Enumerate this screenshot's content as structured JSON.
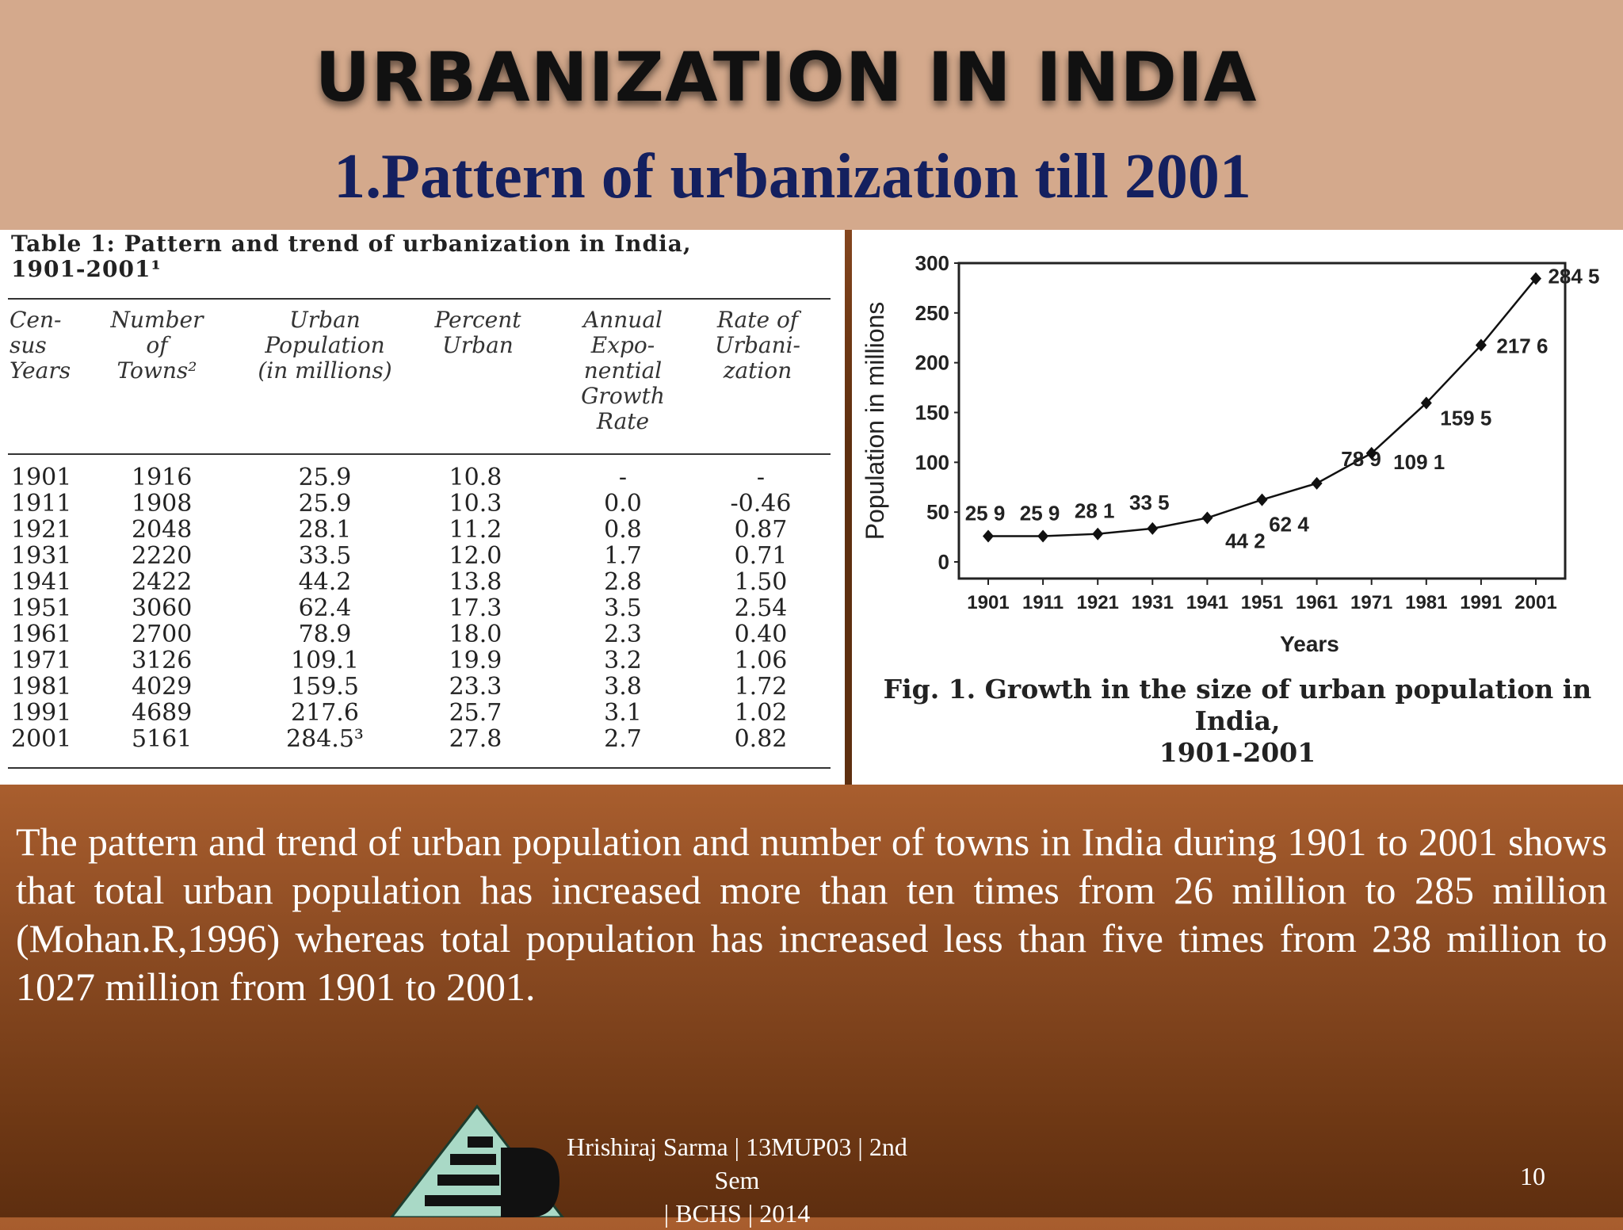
{
  "slide": {
    "title": "URBANIZATION IN INDIA",
    "subtitle": "1.Pattern of urbanization till 2001",
    "body_text": "The pattern and trend of urban population and number of towns in India during 1901 to 2001 shows that total urban population has increased more than ten times from 26 million to 285 million (Mohan.R,1996) whereas total population has increased less than five times from 238 million to 1027 million from 1901 to 2001.",
    "footer": {
      "author_line1": "Hrishiraj Sarma | 13MUP03 | 2nd Sem",
      "author_line2": "| BCHS | 2014",
      "page_number": "10"
    }
  },
  "table": {
    "caption_line1": "Table 1: Pattern and trend of urbanization in India,",
    "caption_line2": "1901-2001¹",
    "headers": [
      [
        "Cen-",
        "sus",
        "Years"
      ],
      [
        "Number",
        "of",
        "Towns²"
      ],
      [
        "Urban",
        "Population",
        "(in millions)"
      ],
      [
        "Percent",
        "Urban"
      ],
      [
        "Annual",
        "Expo-",
        "nential",
        "Growth",
        "Rate"
      ],
      [
        "Rate of",
        "Urbani-",
        "zation"
      ]
    ],
    "rows": [
      [
        "1901",
        "1916",
        "25.9",
        "10.8",
        "-",
        "-"
      ],
      [
        "1911",
        "1908",
        "25.9",
        "10.3",
        "0.0",
        "-0.46"
      ],
      [
        "1921",
        "2048",
        "28.1",
        "11.2",
        "0.8",
        "0.87"
      ],
      [
        "1931",
        "2220",
        "33.5",
        "12.0",
        "1.7",
        "0.71"
      ],
      [
        "1941",
        "2422",
        "44.2",
        "13.8",
        "2.8",
        "1.50"
      ],
      [
        "1951",
        "3060",
        "62.4",
        "17.3",
        "3.5",
        "2.54"
      ],
      [
        "1961",
        "2700",
        "78.9",
        "18.0",
        "2.3",
        "0.40"
      ],
      [
        "1971",
        "3126",
        "109.1",
        "19.9",
        "3.2",
        "1.06"
      ],
      [
        "1981",
        "4029",
        "159.5",
        "23.3",
        "3.8",
        "1.72"
      ],
      [
        "1991",
        "4689",
        "217.6",
        "25.7",
        "3.1",
        "1.02"
      ],
      [
        "2001",
        "5161",
        "284.5³",
        "27.8",
        "2.7",
        "0.82"
      ]
    ]
  },
  "chart_data": {
    "type": "line",
    "title": "",
    "caption_line1": "Fig. 1.  Growth in the size of urban population in India,",
    "caption_line2": "1901-2001",
    "xlabel": "Years",
    "ylabel": "Population in millions",
    "ylim": [
      0,
      300
    ],
    "yticks": [
      0,
      50,
      100,
      150,
      200,
      250,
      300
    ],
    "x": [
      "1901",
      "1911",
      "1921",
      "1931",
      "1941",
      "1951",
      "1961",
      "1971",
      "1981",
      "1991",
      "2001"
    ],
    "values": [
      25.9,
      25.9,
      28.1,
      33.5,
      44.2,
      62.4,
      78.9,
      109.1,
      159.5,
      217.6,
      284.5
    ],
    "point_labels": [
      "25 9",
      "25 9",
      "28 1",
      "33 5",
      "44 2",
      "62 4",
      "78 9",
      "109 1",
      "159 5",
      "217 6",
      "284 5"
    ],
    "grid": false,
    "legend": "none",
    "line_color": "#111111"
  },
  "colors": {
    "header_band": "#d4a98c",
    "title_text": "#111111",
    "subtitle_text": "#14205f",
    "body_background": "#8d4c23",
    "body_text": "#ffffff"
  },
  "logo": {
    "name": "bchs-logo",
    "icon": "triangle-logo-icon"
  }
}
